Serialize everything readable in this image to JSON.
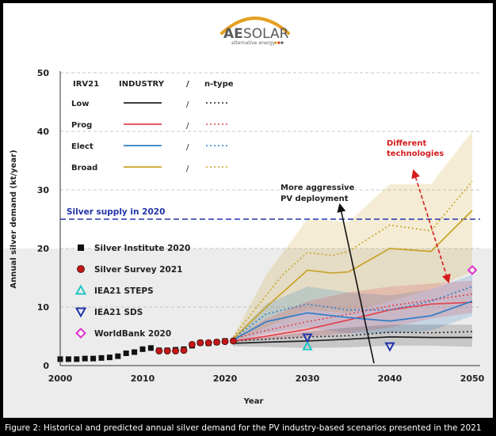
{
  "logo": {
    "brand_bold": "AE",
    "brand_light": "SOLAR",
    "tagline": "alternative energy"
  },
  "caption": "Figure 2: Historical and predicted annual silver demand for the PV industry-based scenarios presented in the 2021",
  "colors": {
    "low": "#222222",
    "prog": "#e0424f",
    "elect": "#2f7cc8",
    "broad": "#c9a227",
    "supply": "#2233aa",
    "historical": "#111111",
    "survey": "#c41818",
    "steps": "#22c6c6",
    "sds": "#2233aa",
    "worldbank": "#dd33cc",
    "annotation_red": "#d41c1c"
  },
  "chart_data": {
    "type": "line",
    "ylabel": "Annual silver demand (kt/year)",
    "xlabel": "Year",
    "xlim": [
      2000,
      2050
    ],
    "ylim": [
      0,
      50
    ],
    "x_ticks": [
      "2000",
      "2010",
      "2020",
      "2030",
      "2040",
      "2050"
    ],
    "y_ticks": [
      "0",
      "10",
      "20",
      "30",
      "40",
      "50"
    ],
    "grid": "horizontal dashed",
    "legend_header": [
      "IRV21",
      "INDUSTRY",
      "/",
      "n-type"
    ],
    "legend_rows": [
      {
        "label": "Low",
        "key": "low"
      },
      {
        "label": "Prog",
        "key": "prog"
      },
      {
        "label": "Elect",
        "key": "elect"
      },
      {
        "label": "Broad",
        "key": "broad"
      }
    ],
    "supply": {
      "label": "Silver supply in 2020",
      "value": 25
    },
    "annotations": {
      "aggressive": [
        "More aggressive",
        "PV deployment"
      ],
      "different": [
        "Different",
        "technologies"
      ]
    },
    "markers_legend": [
      {
        "label": "Silver Institute 2020",
        "shape": "square",
        "key": "historical"
      },
      {
        "label": "Silver  Survey 2021",
        "shape": "circle",
        "key": "survey"
      },
      {
        "label": "IEA21 STEPS",
        "shape": "triangle-up",
        "key": "steps"
      },
      {
        "label": "IEA21 SDS",
        "shape": "triangle-down",
        "key": "sds"
      },
      {
        "label": "WorldBank 2020",
        "shape": "diamond",
        "key": "worldbank"
      }
    ],
    "silver_institute_2020": {
      "x": [
        2000,
        2001,
        2002,
        2003,
        2004,
        2005,
        2006,
        2007,
        2008,
        2009,
        2010,
        2011,
        2012,
        2013,
        2014,
        2015,
        2016,
        2017,
        2018,
        2019,
        2020
      ],
      "y": [
        1.1,
        1.1,
        1.1,
        1.2,
        1.2,
        1.3,
        1.4,
        1.6,
        2.1,
        2.3,
        2.8,
        3.0,
        2.6,
        2.6,
        2.7,
        2.8,
        3.4,
        3.9,
        3.8,
        4.0,
        4.2
      ]
    },
    "silver_survey_2021": {
      "x": [
        2012,
        2013,
        2014,
        2015,
        2016,
        2017,
        2018,
        2019,
        2020,
        2021
      ],
      "y": [
        2.5,
        2.5,
        2.5,
        2.6,
        3.6,
        3.9,
        3.9,
        4.0,
        4.1,
        4.2
      ]
    },
    "iea21_steps": {
      "x": [
        2030
      ],
      "y": [
        3.3
      ]
    },
    "iea21_sds": {
      "x": [
        2030,
        2040
      ],
      "y": [
        4.8,
        3.3
      ]
    },
    "worldbank_2020": {
      "x": [
        2050
      ],
      "y": [
        16.3
      ]
    },
    "series": [
      {
        "key": "low",
        "style": "solid",
        "x": [
          2021,
          2025,
          2030,
          2035,
          2040,
          2045,
          2050
        ],
        "y": [
          3.8,
          4.0,
          4.2,
          4.5,
          4.9,
          4.8,
          4.8
        ]
      },
      {
        "key": "low",
        "style": "dotted",
        "x": [
          2021,
          2025,
          2030,
          2035,
          2040,
          2045,
          2050
        ],
        "y": [
          4.2,
          4.5,
          4.9,
          5.1,
          5.7,
          5.6,
          5.8
        ]
      },
      {
        "key": "prog",
        "style": "solid",
        "x": [
          2021,
          2025,
          2030,
          2035,
          2040,
          2045,
          2050
        ],
        "y": [
          4.2,
          5.0,
          6.2,
          7.8,
          9.5,
          10.5,
          10.8
        ]
      },
      {
        "key": "prog",
        "style": "dotted",
        "x": [
          2021,
          2025,
          2030,
          2035,
          2040,
          2045,
          2050
        ],
        "y": [
          4.6,
          6.0,
          7.5,
          8.8,
          10.2,
          11.2,
          12.2
        ]
      },
      {
        "key": "elect",
        "style": "solid",
        "x": [
          2021,
          2025,
          2030,
          2035,
          2040,
          2045,
          2050
        ],
        "y": [
          4.4,
          7.5,
          9.0,
          8.2,
          7.6,
          8.5,
          11.0
        ]
      },
      {
        "key": "elect",
        "style": "dotted",
        "x": [
          2021,
          2025,
          2030,
          2035,
          2040,
          2045,
          2050
        ],
        "y": [
          4.6,
          8.8,
          10.5,
          9.5,
          9.5,
          11.0,
          13.5
        ]
      },
      {
        "key": "broad",
        "style": "solid",
        "x": [
          2021,
          2025,
          2027,
          2030,
          2033,
          2035,
          2040,
          2045,
          2050
        ],
        "y": [
          4.6,
          10.0,
          12.5,
          16.3,
          15.8,
          16.0,
          20.0,
          19.5,
          26.5
        ]
      },
      {
        "key": "broad",
        "style": "dotted",
        "x": [
          2021,
          2025,
          2027,
          2030,
          2033,
          2035,
          2040,
          2045,
          2050
        ],
        "y": [
          4.9,
          12.0,
          15.5,
          19.3,
          18.8,
          19.5,
          24.0,
          23.0,
          31.5
        ]
      }
    ],
    "bands": [
      {
        "key": "broad",
        "x": [
          2021,
          2025,
          2030,
          2035,
          2040,
          2045,
          2050
        ],
        "lower": [
          4.0,
          6.5,
          9.5,
          9.0,
          11.0,
          13.0,
          16.0
        ],
        "upper": [
          5.0,
          15.5,
          25.0,
          24.5,
          31.0,
          31.0,
          40.0
        ]
      },
      {
        "key": "elect",
        "x": [
          2021,
          2025,
          2030,
          2035,
          2040,
          2045,
          2050
        ],
        "lower": [
          4.0,
          5.5,
          6.5,
          5.5,
          5.5,
          6.0,
          8.5
        ],
        "upper": [
          4.8,
          10.5,
          13.5,
          12.5,
          12.0,
          13.0,
          15.5
        ]
      },
      {
        "key": "prog",
        "x": [
          2021,
          2025,
          2030,
          2035,
          2040,
          2045,
          2050
        ],
        "lower": [
          4.0,
          4.5,
          5.0,
          5.5,
          6.5,
          8.0,
          9.0
        ],
        "upper": [
          4.6,
          8.0,
          11.0,
          12.5,
          13.5,
          14.0,
          14.5
        ]
      },
      {
        "key": "low",
        "x": [
          2021,
          2025,
          2030,
          2035,
          2040,
          2045,
          2050
        ],
        "lower": [
          3.3,
          3.2,
          3.0,
          3.1,
          3.4,
          3.4,
          3.2
        ],
        "upper": [
          4.3,
          4.8,
          5.8,
          6.5,
          7.0,
          7.0,
          7.0
        ]
      }
    ]
  }
}
